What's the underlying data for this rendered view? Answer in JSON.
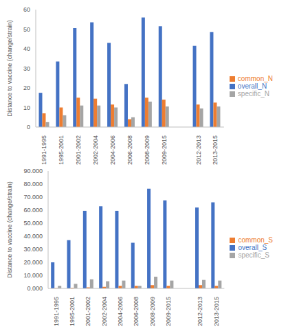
{
  "chart_data": [
    {
      "type": "bar",
      "y_label": "Distance to vaccine (change/strain)",
      "categories": [
        "1991-1995",
        "1995-2001",
        "2001-2002",
        "2002-2004",
        "2004-2006",
        "2006-2008",
        "2008-2009",
        "2009-2015",
        null,
        "2012-2013",
        "2013-2015"
      ],
      "series": [
        {
          "name": "overall_N",
          "color": "#4472c4",
          "values": [
            17.5,
            33.5,
            50.5,
            53.5,
            43,
            22,
            56,
            51.5,
            null,
            41.5,
            48.5
          ]
        },
        {
          "name": "common_N",
          "color": "#ed7d31",
          "values": [
            7,
            10,
            15,
            14.5,
            11.5,
            4,
            15,
            14,
            null,
            11.5,
            12.5
          ]
        },
        {
          "name": "specific_N",
          "color": "#a5a5a5",
          "values": [
            2.5,
            6,
            11,
            11,
            10,
            5,
            13,
            10.5,
            null,
            9.5,
            10.5
          ]
        }
      ],
      "ylim": [
        0,
        60
      ],
      "yticks": [
        0,
        10,
        20,
        30,
        40,
        50,
        60
      ],
      "grid": false,
      "legend": "right"
    },
    {
      "type": "bar",
      "y_label": "Distance to vaccine (change/strain)",
      "categories": [
        "1991-1995",
        "1995-2001",
        "2001-2002",
        "2002-2004",
        "2004-2006",
        "2006-2008",
        "2008-2009",
        "2009-2015",
        null,
        "2012-2013",
        "2013-2015"
      ],
      "series": [
        {
          "name": "overall_S",
          "color": "#4472c4",
          "values": [
            20,
            37,
            59.5,
            63,
            59.5,
            35,
            76.5,
            67.5,
            null,
            62,
            66
          ]
        },
        {
          "name": "common_S",
          "color": "#ed7d31",
          "values": [
            0.3,
            0.5,
            0.8,
            1.2,
            2,
            2,
            2.5,
            2,
            null,
            2.5,
            2
          ]
        },
        {
          "name": "specific_S",
          "color": "#a5a5a5",
          "values": [
            2,
            3.5,
            7,
            5.5,
            6,
            2,
            9,
            6,
            null,
            6.5,
            6
          ]
        }
      ],
      "ylim": [
        0,
        90
      ],
      "yticks": [
        {
          "value": 0,
          "label": "0.000"
        },
        {
          "value": 10,
          "label": "10.000"
        },
        {
          "value": 20,
          "label": "20.000"
        },
        {
          "value": 30,
          "label": "30.000"
        },
        {
          "value": 40,
          "label": "40.000"
        },
        {
          "value": 50,
          "label": "50.000"
        },
        {
          "value": 60,
          "label": "60.000"
        },
        {
          "value": 70,
          "label": "70.000"
        },
        {
          "value": 80,
          "label": "80.000"
        },
        {
          "value": 90,
          "label": "90.000"
        }
      ],
      "grid": false,
      "legend": "right"
    }
  ]
}
